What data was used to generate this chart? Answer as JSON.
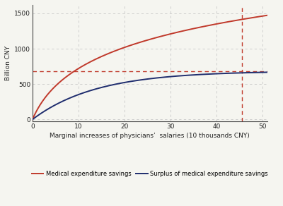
{
  "xlim": [
    0,
    51
  ],
  "ylim": [
    -30,
    1620
  ],
  "xticks": [
    0,
    10,
    20,
    30,
    40,
    50
  ],
  "yticks": [
    0,
    500,
    1000,
    1500
  ],
  "xlabel": "Marginal increases of physicians’  salaries (10 thousands CNY)",
  "ylabel": "Billion CNY",
  "red_line_color": "#c0392b",
  "blue_line_color": "#1f2d6e",
  "dashed_color": "#c0392b",
  "dashed_h_y": 680,
  "dashed_v_x": 45.5,
  "grid_color": "#c8c8c8",
  "bg_color": "#f5f5f0",
  "legend_red_label": "Medical expenditure savings",
  "legend_blue_label": "Surplus of medical expenditure savings",
  "A_red": 540.0,
  "B_red": 0.28,
  "C_blue": 685.0,
  "E_blue": 0.072
}
